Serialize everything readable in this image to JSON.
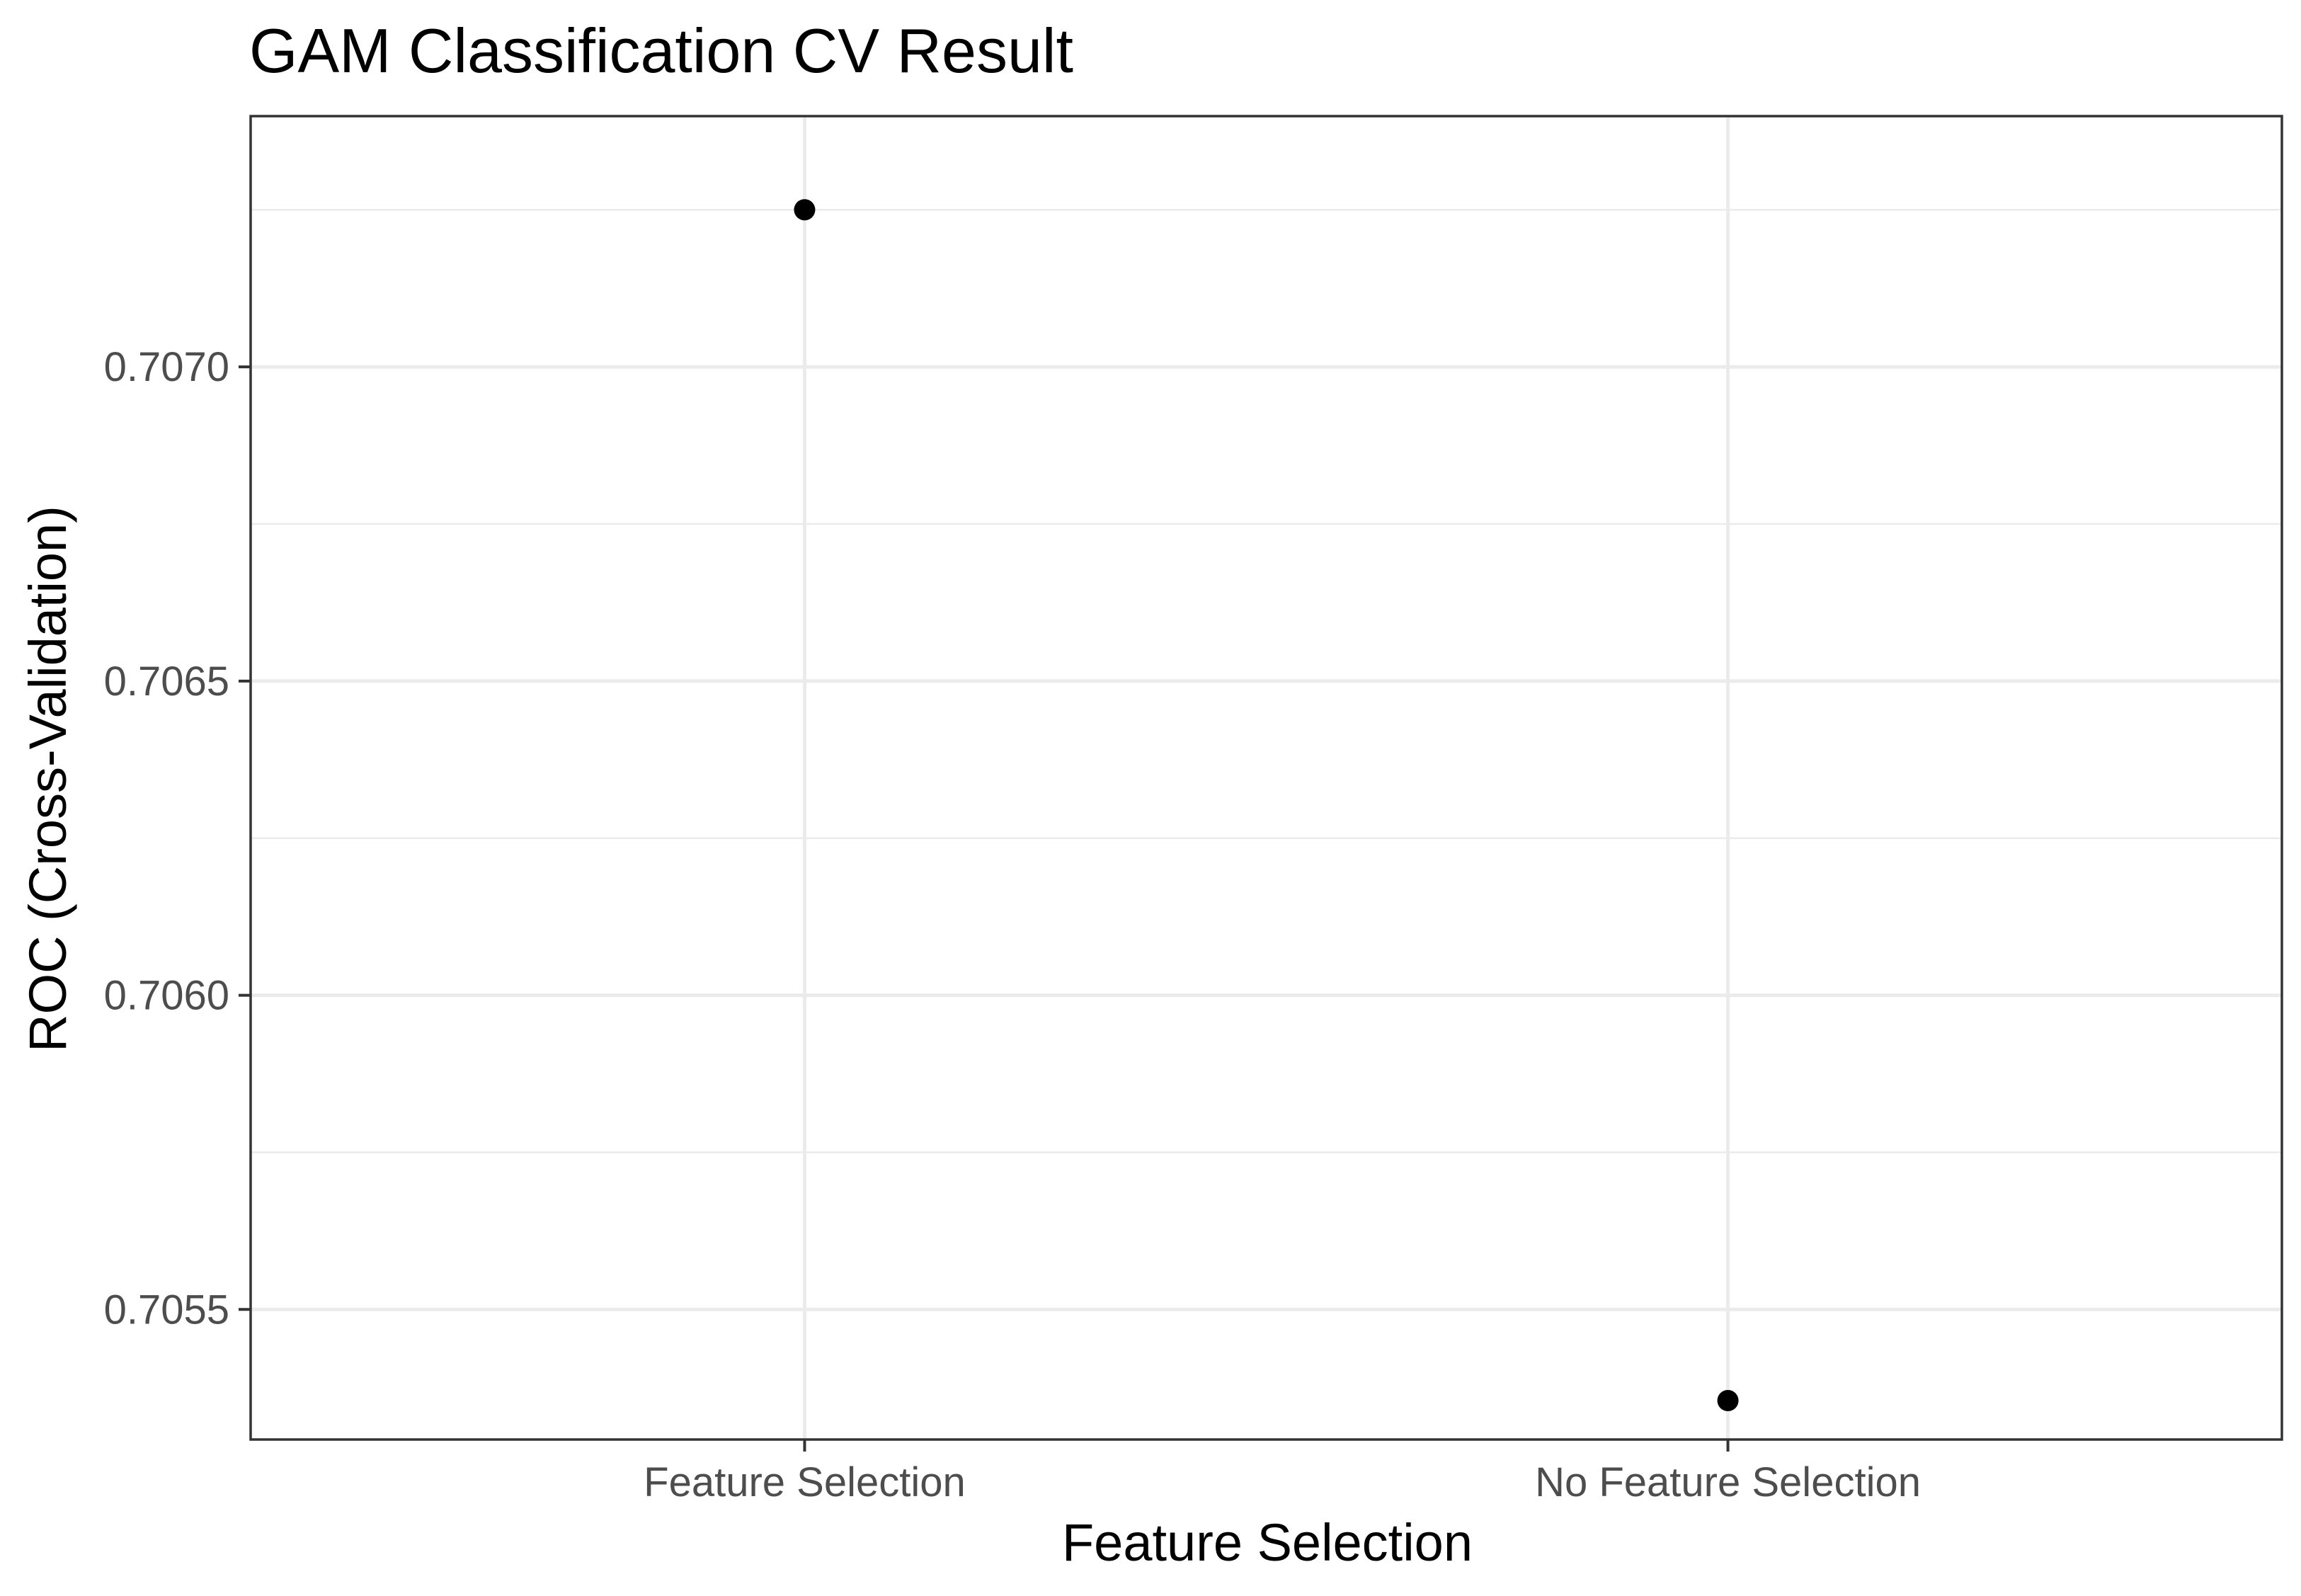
{
  "chart_data": {
    "type": "scatter",
    "title": "GAM Classification CV Result",
    "xlabel": "Feature Selection",
    "ylabel": "ROC (Cross-Validation)",
    "categories": [
      "Feature Selection",
      "No Feature Selection"
    ],
    "values": [
      0.70725,
      0.705355
    ],
    "ylim": [
      0.705293,
      0.707399
    ],
    "y_ticks": [
      0.7055,
      0.706,
      0.7065,
      0.707
    ],
    "y_tick_labels": [
      "0.7055",
      "0.7060",
      "0.7065",
      "0.7070"
    ],
    "y_minor_ticks": [
      0.70575,
      0.70625,
      0.70675,
      0.70725
    ],
    "grid": true,
    "legend": "none",
    "colors": {
      "point": "#000000",
      "grid": "#ebebeb",
      "border": "#333333",
      "tick_label": "#4d4d4d",
      "background": "#ffffff"
    }
  }
}
